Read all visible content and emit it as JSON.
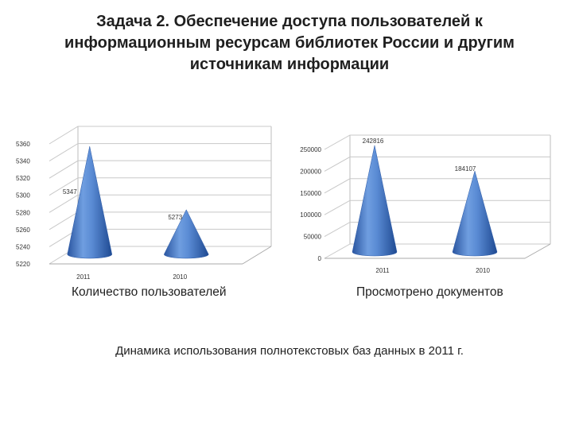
{
  "slide": {
    "title": "Задача 2. Обеспечение доступа пользователей к информационным ресурсам библиотек России и другим источникам информации",
    "footnote": "Динамика использования полнотекстовых баз данных в 2011 г."
  },
  "chart_data": [
    {
      "type": "bar",
      "shape": "cone-3d",
      "caption": "Количество пользователей",
      "categories": [
        "2011",
        "2010"
      ],
      "values": [
        5347,
        5273
      ],
      "data_labels": [
        "5347",
        "5273"
      ],
      "ylim": [
        5220,
        5360
      ],
      "yticks": [
        "5220",
        "5240",
        "5260",
        "5280",
        "5300",
        "5320",
        "5340",
        "5360"
      ],
      "grid": true,
      "color": "#4a7dc9"
    },
    {
      "type": "bar",
      "shape": "cone-3d",
      "caption": "Просмотрено документов",
      "categories": [
        "2011",
        "2010"
      ],
      "values": [
        242816,
        184107
      ],
      "data_labels": [
        "242816",
        "184107"
      ],
      "ylim": [
        0,
        250000
      ],
      "yticks": [
        "0",
        "50000",
        "100000",
        "150000",
        "200000",
        "250000"
      ],
      "grid": true,
      "color": "#4a7dc9"
    }
  ]
}
